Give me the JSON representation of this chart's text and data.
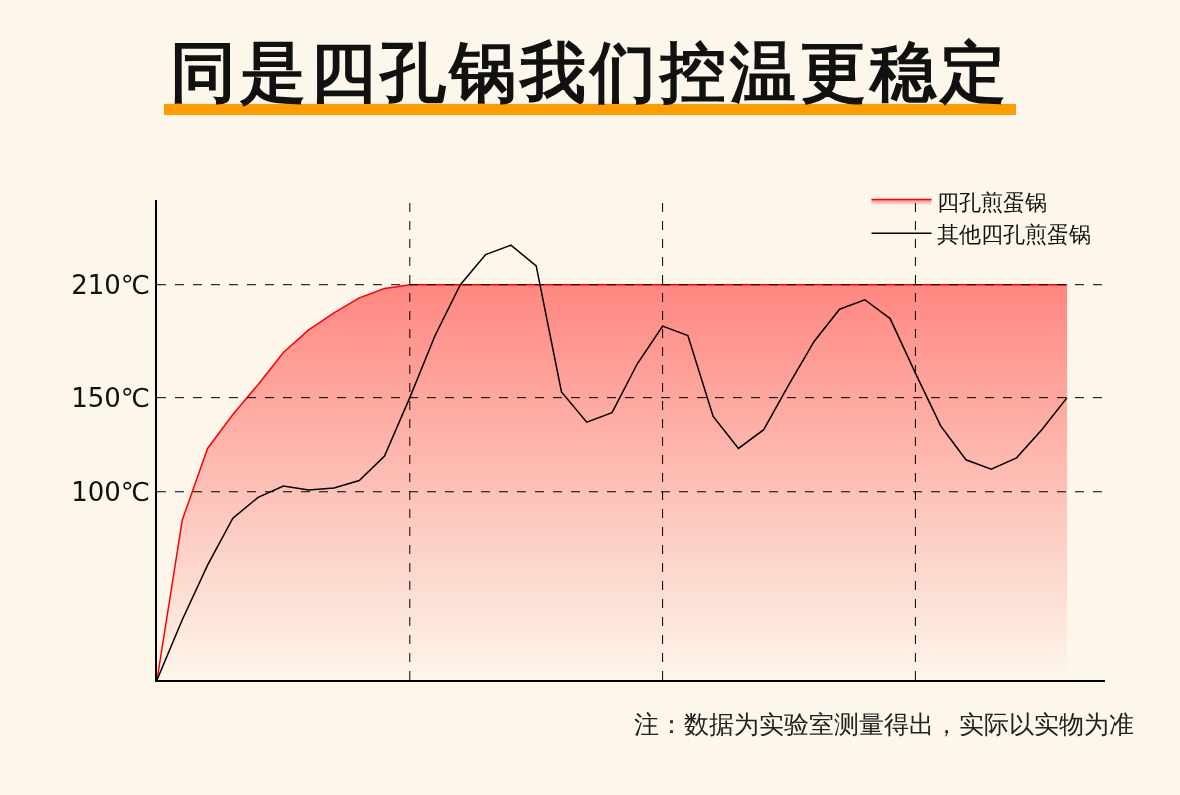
{
  "chart_data": {
    "type": "line",
    "title": "同是四孔锅我们控温更稳定",
    "categories": [
      null,
      null,
      null,
      null,
      null,
      null,
      null,
      null,
      null,
      null,
      null,
      null,
      null,
      null,
      null,
      null,
      null,
      null,
      null,
      null,
      null,
      null,
      null,
      null,
      null,
      null,
      null,
      null,
      null,
      null,
      null,
      null,
      null,
      null,
      null,
      null,
      null
    ],
    "series": [
      {
        "name": "四孔煎蛋锅",
        "type": "area",
        "color": "#ff0000",
        "values": [
          0,
          85,
          123,
          141,
          157,
          174,
          186,
          195,
          203,
          208,
          210,
          210,
          210,
          210,
          210,
          210,
          210,
          210,
          210,
          210,
          210,
          210,
          210,
          210,
          210,
          210,
          210,
          210,
          210,
          210,
          210,
          210,
          210,
          210,
          210,
          210,
          210
        ]
      },
      {
        "name": "其他四孔煎蛋锅",
        "type": "line",
        "color": "#000000",
        "values": [
          0,
          32,
          61,
          86,
          97,
          103,
          101,
          102,
          106,
          119,
          150,
          183,
          210,
          226,
          231,
          220,
          153,
          137,
          142,
          168,
          188,
          183,
          140,
          123,
          133,
          157,
          180,
          197,
          202,
          192,
          163,
          135,
          117,
          112,
          118,
          133,
          150
        ]
      }
    ],
    "ylim": [
      0,
      255
    ],
    "yticks": [
      {
        "value": 100,
        "label": "100℃"
      },
      {
        "value": 150,
        "label": "150℃"
      },
      {
        "value": 210,
        "label": "210℃"
      }
    ],
    "tick_labels": "y",
    "grid": true,
    "legend": "top right",
    "marker": "none",
    "annotations": [
      "注：数据为实验室测量得出，实际以实物为准"
    ]
  }
}
